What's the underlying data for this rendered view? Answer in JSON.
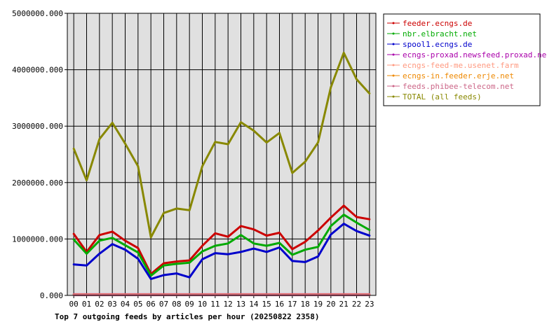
{
  "chart_data": {
    "type": "line",
    "title": "Top 7 outgoing feeds by articles per hour (20250822 2358)",
    "xlabel": "",
    "ylabel": "",
    "x": [
      "00",
      "01",
      "02",
      "03",
      "04",
      "05",
      "06",
      "07",
      "08",
      "09",
      "10",
      "11",
      "12",
      "13",
      "14",
      "15",
      "16",
      "17",
      "18",
      "19",
      "20",
      "21",
      "22",
      "23"
    ],
    "yticks": [
      "0.000",
      "1000000.000",
      "2000000.000",
      "3000000.000",
      "4000000.000",
      "5000000.000"
    ],
    "ylim": [
      0,
      5000000
    ],
    "grid": true,
    "legend_position": "top-right",
    "series": [
      {
        "name": "feeder.ecngs.de",
        "color": "#cc0000",
        "values": [
          1090000,
          770000,
          1070000,
          1130000,
          970000,
          840000,
          380000,
          570000,
          600000,
          620000,
          880000,
          1100000,
          1040000,
          1230000,
          1170000,
          1060000,
          1110000,
          820000,
          950000,
          1150000,
          1380000,
          1590000,
          1390000,
          1350000
        ]
      },
      {
        "name": "nbr.elbracht.net",
        "color": "#00aa00",
        "values": [
          990000,
          740000,
          970000,
          1020000,
          890000,
          760000,
          350000,
          530000,
          560000,
          580000,
          780000,
          880000,
          920000,
          1070000,
          920000,
          880000,
          930000,
          720000,
          810000,
          860000,
          1230000,
          1430000,
          1290000,
          1160000
        ]
      },
      {
        "name": "spool1.ecngs.de",
        "color": "#0000cc",
        "values": [
          550000,
          530000,
          740000,
          910000,
          810000,
          650000,
          290000,
          360000,
          390000,
          320000,
          640000,
          750000,
          730000,
          770000,
          830000,
          770000,
          850000,
          610000,
          590000,
          690000,
          1080000,
          1270000,
          1140000,
          1060000
        ]
      },
      {
        "name": "ecngs-proxad.newsfeed.proxad.net",
        "color": "#aa00aa",
        "values": [
          20000,
          20000,
          20000,
          20000,
          20000,
          20000,
          20000,
          20000,
          20000,
          20000,
          20000,
          20000,
          20000,
          20000,
          20000,
          20000,
          20000,
          20000,
          20000,
          20000,
          20000,
          20000,
          20000,
          20000
        ]
      },
      {
        "name": "ecngs-feed-me.usenet.farm",
        "color": "#ff9980",
        "values": [
          15000,
          15000,
          15000,
          15000,
          15000,
          15000,
          15000,
          15000,
          15000,
          15000,
          15000,
          15000,
          15000,
          15000,
          15000,
          15000,
          15000,
          15000,
          15000,
          15000,
          15000,
          15000,
          15000,
          15000
        ]
      },
      {
        "name": "ecngs-in.feeder.erje.net",
        "color": "#ee8800",
        "values": [
          10000,
          10000,
          10000,
          10000,
          10000,
          10000,
          10000,
          10000,
          10000,
          10000,
          10000,
          10000,
          10000,
          10000,
          10000,
          10000,
          10000,
          10000,
          10000,
          10000,
          10000,
          10000,
          10000,
          10000
        ]
      },
      {
        "name": "feeds.phibee-telecom.net",
        "color": "#cc6688",
        "values": [
          5000,
          5000,
          5000,
          5000,
          5000,
          5000,
          5000,
          5000,
          5000,
          5000,
          5000,
          5000,
          5000,
          5000,
          5000,
          5000,
          5000,
          5000,
          5000,
          5000,
          5000,
          5000,
          5000,
          5000
        ]
      },
      {
        "name": "TOTAL (all feeds)",
        "color": "#888800",
        "values": [
          2600000,
          2040000,
          2770000,
          3060000,
          2690000,
          2290000,
          1030000,
          1460000,
          1540000,
          1510000,
          2290000,
          2720000,
          2680000,
          3070000,
          2920000,
          2710000,
          2880000,
          2170000,
          2370000,
          2710000,
          3690000,
          4300000,
          3830000,
          3580000
        ]
      }
    ]
  }
}
